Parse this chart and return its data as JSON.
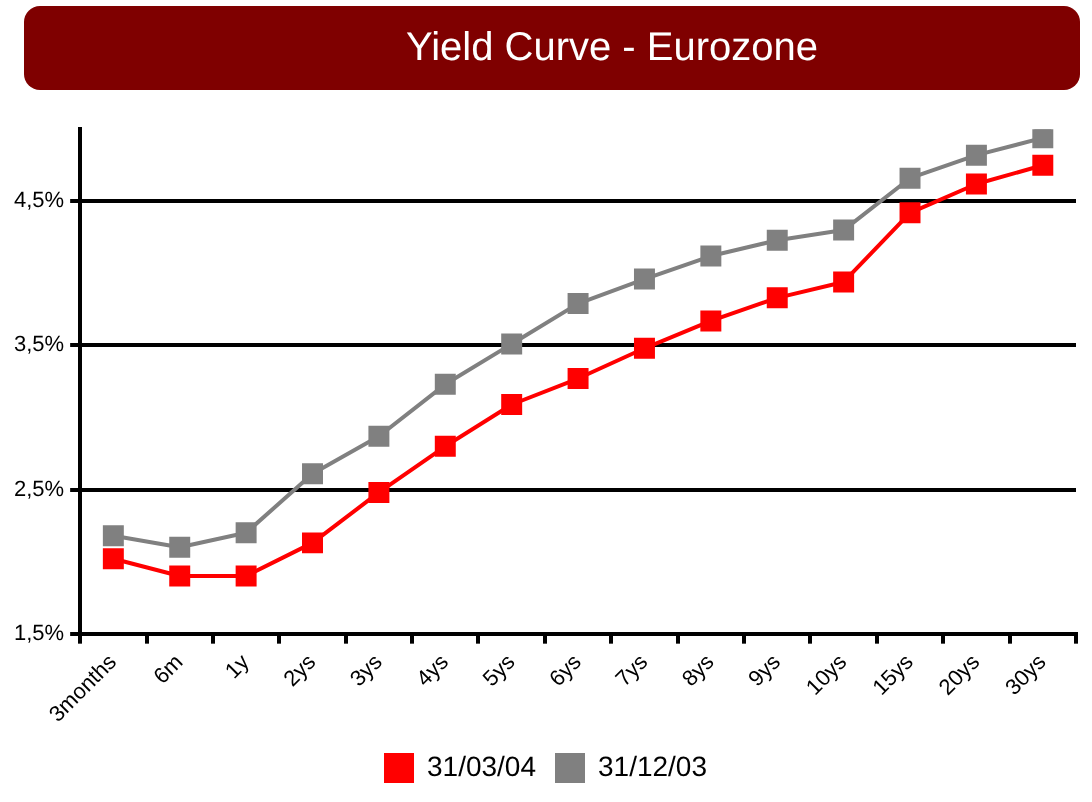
{
  "chart_data": {
    "type": "line",
    "title": "Yield Curve - Eurozone",
    "categories": [
      "3months",
      "6m",
      "1y",
      "2ys",
      "3ys",
      "4ys",
      "5ys",
      "6ys",
      "7ys",
      "8ys",
      "9ys",
      "10ys",
      "15ys",
      "20ys",
      "30ys"
    ],
    "series": [
      {
        "name": "31/03/04",
        "color": "#ff0000",
        "values": [
          2.02,
          1.9,
          1.9,
          2.13,
          2.48,
          2.8,
          3.09,
          3.27,
          3.48,
          3.67,
          3.83,
          3.94,
          4.42,
          4.62,
          4.75
        ]
      },
      {
        "name": "31/12/03",
        "color": "#808080",
        "values": [
          2.18,
          2.1,
          2.2,
          2.61,
          2.87,
          3.23,
          3.51,
          3.79,
          3.96,
          4.12,
          4.23,
          4.3,
          4.66,
          4.82,
          4.94
        ]
      }
    ],
    "ylim": [
      1.5,
      5.0
    ],
    "yticks": [
      {
        "value": 1.5,
        "label": "1,5%"
      },
      {
        "value": 2.5,
        "label": "2,5%"
      },
      {
        "value": 3.5,
        "label": "3,5%"
      },
      {
        "value": 4.5,
        "label": "4,5%"
      }
    ],
    "grid": "y",
    "legend": "bottom",
    "marker": "square",
    "line_style": "solid"
  }
}
